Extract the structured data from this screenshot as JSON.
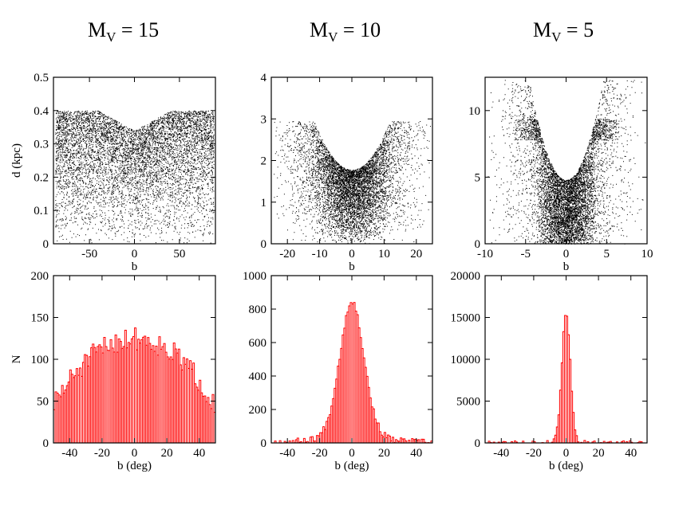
{
  "panel_titles": [
    {
      "main": "M",
      "sub": "V",
      "rest": " = 15"
    },
    {
      "main": "M",
      "sub": "V",
      "rest": " = 10"
    },
    {
      "main": "M",
      "sub": "V",
      "rest": " = 5"
    }
  ],
  "chart_data": [
    {
      "type": "scatter",
      "panel": "top-left",
      "xlabel": "b",
      "ylabel": "d (kpc)",
      "xlim": [
        -90,
        90
      ],
      "ylim": [
        0,
        0.5
      ],
      "xticks": [
        -50,
        0,
        50
      ],
      "xtick_labels": [
        "-50",
        "0",
        "50"
      ],
      "yticks": [
        0,
        0.1,
        0.2,
        0.3,
        0.4,
        0.5
      ],
      "ytick_labels": [
        "0",
        "0.1",
        "0.2",
        "0.3",
        "0.4",
        "0.5"
      ],
      "n_points": 7000,
      "seed": 11,
      "envelope": "d_max = 0.34 + 0.0015*|b|, capped at 0.40",
      "color": "#000000"
    },
    {
      "type": "scatter",
      "panel": "top-middle",
      "xlabel": "b",
      "ylabel": "",
      "xlim": [
        -25,
        25
      ],
      "ylim": [
        0,
        4
      ],
      "xticks": [
        -20,
        -10,
        0,
        10,
        20
      ],
      "xtick_labels": [
        "-20",
        "-10",
        "0",
        "10",
        "20"
      ],
      "yticks": [
        0,
        1,
        2,
        3,
        4
      ],
      "ytick_labels": [
        "0",
        "1",
        "2",
        "3",
        "4"
      ],
      "n_points": 6500,
      "seed": 23,
      "envelope": "d_max = 1.78 + 0.0085*b^2, capped at 2.95",
      "color": "#000000"
    },
    {
      "type": "scatter",
      "panel": "top-right",
      "xlabel": "b",
      "ylabel": "",
      "xlim": [
        -10,
        10
      ],
      "ylim": [
        0,
        12.5
      ],
      "xticks": [
        -10,
        -5,
        0,
        5,
        10
      ],
      "xtick_labels": [
        "-10",
        "-5",
        "0",
        "5",
        "10"
      ],
      "yticks": [
        0,
        5,
        10
      ],
      "ytick_labels": [
        "0",
        "5",
        "10"
      ],
      "n_points": 7000,
      "seed": 37,
      "envelope": "d_max = 4.8 + 0.36*b^2, plume near |b|=4 at d 8-9",
      "color": "#000000"
    },
    {
      "type": "bar",
      "panel": "bottom-left",
      "xlabel": "b (deg)",
      "ylabel": "N",
      "xlim": [
        -50,
        50
      ],
      "ylim": [
        0,
        200
      ],
      "xticks": [
        -40,
        -20,
        0,
        20,
        40
      ],
      "xtick_labels": [
        "-40",
        "-20",
        "0",
        "20",
        "40"
      ],
      "yticks": [
        0,
        50,
        100,
        150,
        200
      ],
      "ytick_labels": [
        "0",
        "50",
        "100",
        "150",
        "200"
      ],
      "bin_width": 1,
      "profile": {
        "kind": "parabola",
        "peak": 125,
        "edge": 45,
        "noise": 14
      },
      "seed": 51,
      "color": "#ff0000"
    },
    {
      "type": "bar",
      "panel": "bottom-middle",
      "xlabel": "b (deg)",
      "ylabel": "",
      "xlim": [
        -50,
        50
      ],
      "ylim": [
        0,
        1000
      ],
      "xticks": [
        -40,
        -20,
        0,
        20,
        40
      ],
      "xtick_labels": [
        "-40",
        "-20",
        "0",
        "20",
        "40"
      ],
      "yticks": [
        0,
        200,
        400,
        600,
        800,
        1000
      ],
      "ytick_labels": [
        "0",
        "200",
        "400",
        "600",
        "800",
        "1000"
      ],
      "bin_width": 1,
      "profile": {
        "kind": "peaked",
        "peak": 745,
        "sigma": 7.5,
        "wing": 110,
        "wing_scale": 14,
        "noise": 20
      },
      "seed": 67,
      "color": "#ff0000"
    },
    {
      "type": "bar",
      "panel": "bottom-right",
      "xlabel": "b (deg)",
      "ylabel": "",
      "xlim": [
        -50,
        50
      ],
      "ylim": [
        0,
        20000
      ],
      "xticks": [
        -40,
        -20,
        0,
        20,
        40
      ],
      "xtick_labels": [
        "-40",
        "-20",
        "0",
        "20",
        "40"
      ],
      "yticks": [
        0,
        5000,
        10000,
        15000,
        20000
      ],
      "ytick_labels": [
        "0",
        "5000",
        "10000",
        "15000",
        "20000"
      ],
      "bin_width": 1,
      "profile": {
        "kind": "peaked",
        "peak": 15200,
        "sigma": 2.6,
        "wing": 350,
        "wing_scale": 6,
        "noise": 250
      },
      "seed": 79,
      "color": "#ff0000"
    }
  ]
}
